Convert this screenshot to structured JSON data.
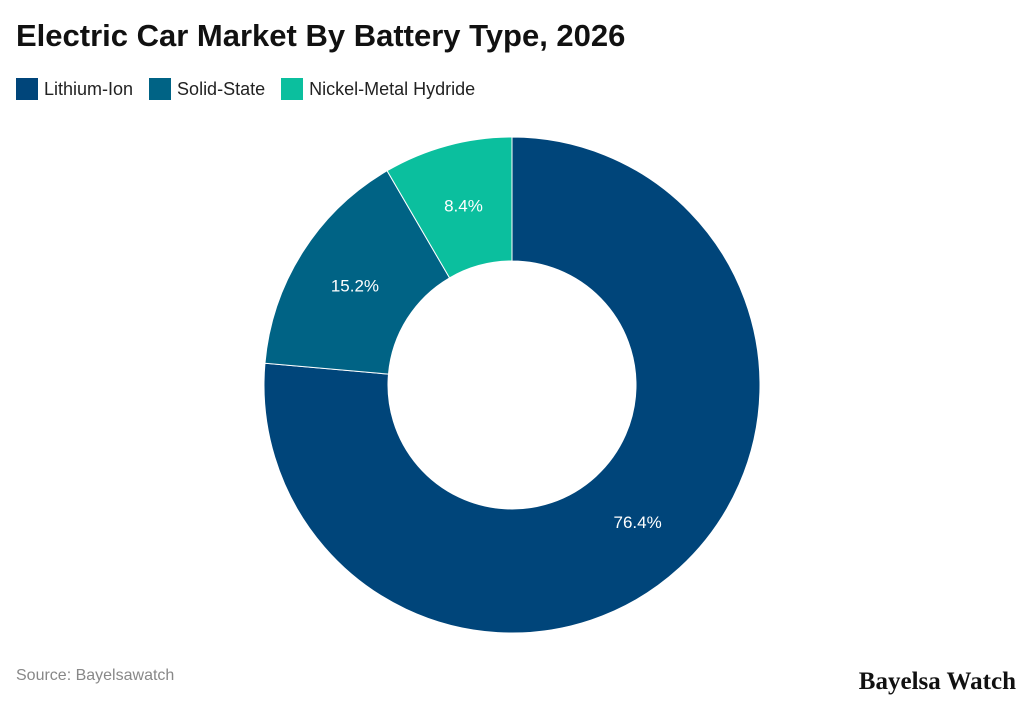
{
  "chart_data": {
    "type": "pie",
    "variant": "donut",
    "title": "Electric Car Market By Battery Type, 2026",
    "categories": [
      "Lithium-Ion",
      "Solid-State",
      "Nickel-Metal Hydride"
    ],
    "values": [
      76.4,
      15.2,
      8.4
    ],
    "data_labels": [
      "76.4%",
      "15.2%",
      "8.4%"
    ],
    "colors": [
      "#00457a",
      "#006385",
      "#0bbf9e"
    ],
    "legend_position": "top-left"
  },
  "source": "Source: Bayelsawatch",
  "brand": "Bayelsa Watch"
}
